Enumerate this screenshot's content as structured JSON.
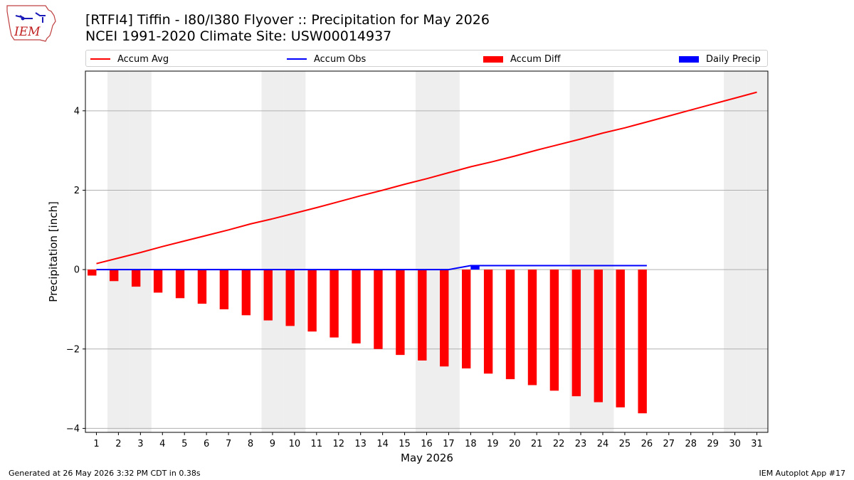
{
  "header": {
    "title_line1": "[RTFI4] Tiffin - I80/I380 Flyover :: Precipitation for May 2026",
    "title_line2": "NCEI 1991-2020 Climate Site: USW00014937",
    "logo_text": "IEM"
  },
  "legend": {
    "accum_avg": "Accum Avg",
    "accum_obs": "Accum Obs",
    "accum_diff": "Accum Diff",
    "daily_precip": "Daily Precip"
  },
  "colors": {
    "accum_avg": "#ff0000",
    "accum_obs": "#0000ff",
    "accum_diff": "#ff0000",
    "daily_precip": "#0000ff",
    "weekend_shade": "#eeeeee",
    "grid": "#b0b0b0"
  },
  "chart_data": {
    "type": "bar",
    "xlabel": "May 2026",
    "ylabel": "Precipitation [inch]",
    "xlim": [
      0.5,
      31.5
    ],
    "ylim": [
      -4.1,
      5.0
    ],
    "yticks": [
      -4,
      -2,
      0,
      2,
      4
    ],
    "ytick_labels": [
      "−4",
      "−2",
      "0",
      "2",
      "4"
    ],
    "grid": "horizontal",
    "legend_position": "top",
    "days": [
      1,
      2,
      3,
      4,
      5,
      6,
      7,
      8,
      9,
      10,
      11,
      12,
      13,
      14,
      15,
      16,
      17,
      18,
      19,
      20,
      21,
      22,
      23,
      24,
      25,
      26,
      27,
      28,
      29,
      30,
      31
    ],
    "weekend_days": [
      2,
      3,
      9,
      10,
      16,
      17,
      23,
      24,
      30,
      31
    ],
    "series": [
      {
        "name": "Accum Avg",
        "kind": "line",
        "x": [
          1,
          2,
          3,
          4,
          5,
          6,
          7,
          8,
          9,
          10,
          11,
          12,
          13,
          14,
          15,
          16,
          17,
          18,
          19,
          20,
          21,
          22,
          23,
          24,
          25,
          26,
          27,
          28,
          29,
          30,
          31
        ],
        "values": [
          0.15,
          0.29,
          0.43,
          0.58,
          0.72,
          0.86,
          1.0,
          1.15,
          1.28,
          1.42,
          1.56,
          1.71,
          1.86,
          2.0,
          2.15,
          2.29,
          2.44,
          2.59,
          2.72,
          2.86,
          3.01,
          3.15,
          3.29,
          3.44,
          3.57,
          3.72,
          3.87,
          4.02,
          4.17,
          4.32,
          4.47
        ]
      },
      {
        "name": "Accum Obs",
        "kind": "line",
        "x": [
          1,
          2,
          3,
          4,
          5,
          6,
          7,
          8,
          9,
          10,
          11,
          12,
          13,
          14,
          15,
          16,
          17,
          18,
          19,
          20,
          21,
          22,
          23,
          24,
          25,
          26
        ],
        "values": [
          0,
          0,
          0,
          0,
          0,
          0,
          0,
          0,
          0,
          0,
          0,
          0,
          0,
          0,
          0,
          0,
          0,
          0.1,
          0.1,
          0.1,
          0.1,
          0.1,
          0.1,
          0.1,
          0.1,
          0.1
        ]
      },
      {
        "name": "Accum Diff",
        "kind": "bar",
        "x": [
          1,
          2,
          3,
          4,
          5,
          6,
          7,
          8,
          9,
          10,
          11,
          12,
          13,
          14,
          15,
          16,
          17,
          18,
          19,
          20,
          21,
          22,
          23,
          24,
          25,
          26
        ],
        "values": [
          -0.15,
          -0.29,
          -0.43,
          -0.58,
          -0.72,
          -0.86,
          -1.0,
          -1.15,
          -1.28,
          -1.42,
          -1.56,
          -1.71,
          -1.86,
          -2.0,
          -2.15,
          -2.29,
          -2.44,
          -2.49,
          -2.62,
          -2.76,
          -2.91,
          -3.05,
          -3.19,
          -3.34,
          -3.47,
          -3.62
        ]
      },
      {
        "name": "Daily Precip",
        "kind": "bar",
        "x": [
          18
        ],
        "values": [
          0.1
        ]
      }
    ]
  },
  "footer": {
    "generated": "Generated at 26 May 2026 3:32 PM CDT in 0.38s",
    "app": "IEM Autoplot App #17"
  }
}
